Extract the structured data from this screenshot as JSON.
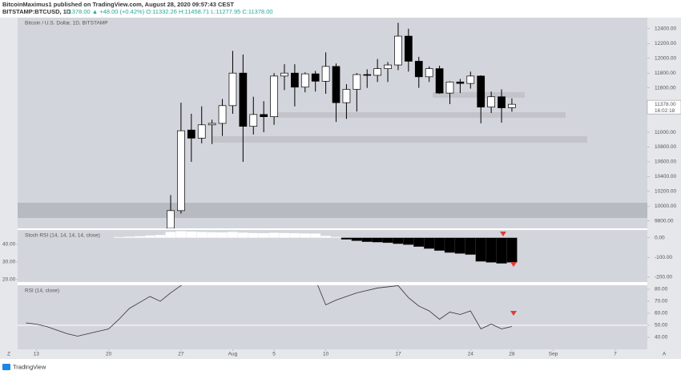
{
  "header": {
    "author": "BitcoinMaximus1 published on TradingView.com, August 28, 2020 09:57:43 CEST",
    "symbol": "BITSTAMP:BTCUSD, 1D",
    "quote": "11378.00 ▲ +48.00 (+0.42%) O:11332.26 H:11458.71 L:11277.95 C:11378.00",
    "brand": "TradingView"
  },
  "chart_data": [
    {
      "type": "candlestick",
      "title": "Bitcoin / U.S. Dollar, 1D, BITSTAMP",
      "up_color": "#ffffff",
      "down_color": "#000000",
      "x": [
        208,
        209,
        210,
        211,
        212,
        213,
        214,
        215,
        216,
        217,
        218,
        219,
        220,
        221,
        222,
        223,
        224,
        225,
        226,
        227,
        228,
        229,
        230,
        231,
        232,
        233,
        234,
        235,
        236,
        237,
        238,
        239,
        240,
        241
      ],
      "open": [
        9700,
        9940,
        11030,
        10920,
        11100,
        11120,
        11360,
        11800,
        11080,
        11240,
        11210,
        11760,
        11800,
        11610,
        11790,
        11690,
        11890,
        11400,
        11580,
        11780,
        11770,
        11860,
        11910,
        12300,
        11960,
        11750,
        11860,
        11530,
        11680,
        11660,
        11760,
        11340,
        11480,
        11332.26
      ],
      "high": [
        10150,
        11400,
        11250,
        11350,
        11170,
        11450,
        12100,
        12050,
        11480,
        11420,
        11800,
        11920,
        11920,
        11810,
        11830,
        12080,
        11930,
        11650,
        11800,
        11850,
        11990,
        11950,
        12480,
        12400,
        12020,
        11890,
        11900,
        11690,
        11720,
        11820,
        11770,
        11550,
        11580,
        11458.71
      ],
      "low": [
        9650,
        9900,
        10600,
        10850,
        10840,
        10950,
        11250,
        10600,
        10970,
        11000,
        11100,
        11570,
        11350,
        11540,
        11550,
        11520,
        11140,
        11180,
        11280,
        11600,
        11680,
        11680,
        11840,
        11820,
        11600,
        11680,
        11520,
        11380,
        11530,
        11590,
        11120,
        11260,
        11130,
        11277.95
      ],
      "close": [
        9940,
        11020,
        10920,
        11100,
        11120,
        11360,
        11800,
        11080,
        11240,
        11210,
        11760,
        11800,
        11610,
        11790,
        11690,
        11890,
        11400,
        11580,
        11780,
        11770,
        11860,
        11910,
        12300,
        11960,
        11750,
        11860,
        11530,
        11680,
        11660,
        11760,
        11340,
        11480,
        11330,
        11378.0
      ],
      "price_label": "11378.00",
      "countdown": "16:02:18",
      "xlim": [
        193.2,
        254.1
      ],
      "xticks": [
        {
          "value": 195,
          "label": "13"
        },
        {
          "value": 202,
          "label": "20"
        },
        {
          "value": 209,
          "label": "27"
        },
        {
          "value": 214,
          "label": "Aug"
        },
        {
          "value": 218,
          "label": "5"
        },
        {
          "value": 223,
          "label": "10"
        },
        {
          "value": 230,
          "label": "17"
        },
        {
          "value": 237,
          "label": "24"
        },
        {
          "value": 241,
          "label": "28"
        },
        {
          "value": 245,
          "label": "Sep"
        },
        {
          "value": 251,
          "label": "7"
        }
      ],
      "ylim": [
        9700,
        12550
      ],
      "yticks": [
        {
          "value": 9800,
          "label": "9800.00"
        },
        {
          "value": 10000,
          "label": "10000.00"
        },
        {
          "value": 10200,
          "label": "10200.00"
        },
        {
          "value": 10400,
          "label": "10400.00"
        },
        {
          "value": 10600,
          "label": "10600.00"
        },
        {
          "value": 10800,
          "label": "10800.00"
        },
        {
          "value": 11000,
          "label": "11000.00"
        },
        {
          "value": 11600,
          "label": "11600.00"
        },
        {
          "value": 11800,
          "label": "11800.00"
        },
        {
          "value": 12000,
          "label": "12000.00"
        },
        {
          "value": 12200,
          "label": "12200.00"
        },
        {
          "value": 12400,
          "label": "12400.00"
        }
      ]
    },
    {
      "type": "bar",
      "title": "Stoch RSI (14, 14, 14, 14, close)",
      "up_color": "#ffffff",
      "down_color": "#000000",
      "x": [
        203,
        204,
        205,
        206,
        207,
        208,
        209,
        210,
        211,
        212,
        213,
        214,
        215,
        216,
        217,
        218,
        219,
        220,
        221,
        222,
        223,
        224,
        225,
        226,
        227,
        228,
        229,
        230,
        231,
        232,
        233,
        234,
        235,
        236,
        237,
        238,
        239,
        240,
        241
      ],
      "values": [
        4,
        6,
        8,
        12,
        15,
        30,
        34,
        32,
        30,
        29,
        28,
        30,
        27,
        25,
        24,
        26,
        25,
        24,
        23,
        22,
        10,
        5,
        -8,
        -15,
        -20,
        -22,
        -25,
        -30,
        -35,
        -45,
        -55,
        -65,
        -75,
        -80,
        -85,
        -120,
        -125,
        -130,
        -125
      ],
      "ylim": [
        -225,
        40
      ],
      "yticks": [
        {
          "value": 0,
          "label": "0.00"
        },
        {
          "value": -100,
          "label": "-100.00"
        },
        {
          "value": -200,
          "label": "-200.00"
        }
      ],
      "y2lim": [
        18.6,
        48.2
      ],
      "y2ticks": [
        {
          "value": 40,
          "label": "40.00"
        },
        {
          "value": 30,
          "label": "30.00"
        },
        {
          "value": 20,
          "label": "20.00"
        }
      ]
    },
    {
      "type": "line",
      "title": "RSI (14, close)",
      "color": "#333333",
      "x": [
        194,
        195,
        196,
        197,
        198,
        199,
        200,
        201,
        202,
        203,
        204,
        205,
        206,
        207,
        208,
        209,
        210,
        211,
        212,
        213,
        214,
        215,
        216,
        217,
        218,
        219,
        220,
        221,
        222,
        223,
        224,
        225,
        226,
        227,
        228,
        229,
        230,
        231,
        232,
        233,
        234,
        235,
        236,
        237,
        238,
        239,
        240,
        241
      ],
      "values": [
        52,
        51,
        49,
        46,
        43,
        41,
        43,
        45,
        47,
        55,
        64,
        69,
        74,
        70,
        77,
        83,
        90,
        88,
        87,
        89,
        90,
        86,
        85,
        86,
        88,
        87,
        86,
        86,
        88,
        67,
        71,
        74,
        77,
        79,
        81,
        82,
        83,
        73,
        66,
        62,
        55,
        61,
        59,
        62,
        47,
        51,
        47,
        49
      ],
      "ylim": [
        30,
        83.3
      ],
      "level": 50,
      "yticks": [
        {
          "value": 40,
          "label": "40.00"
        },
        {
          "value": 50,
          "label": "50.00"
        },
        {
          "value": 60,
          "label": "60.00"
        },
        {
          "value": 70,
          "label": "70.00"
        },
        {
          "value": 80,
          "label": "80.00"
        }
      ]
    }
  ]
}
